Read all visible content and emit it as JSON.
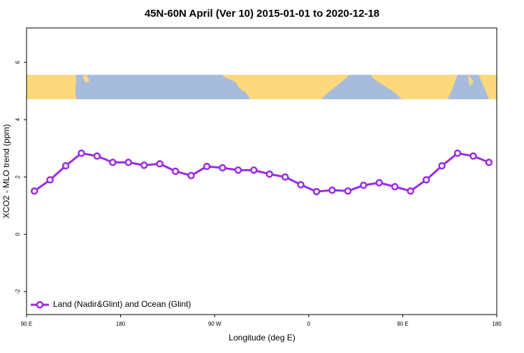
{
  "chart_data": {
    "type": "line",
    "title": "45N-60N April (Ver 10)   2015-01-01 to 2020-12-18",
    "x_label": "Longitude (deg E)",
    "y_label": "XCO2 - MLO trend (ppm)",
    "x": [
      97.5,
      112.5,
      127.5,
      142.5,
      157.5,
      172.5,
      187.5,
      202.5,
      217.5,
      232.5,
      247.5,
      262.5,
      277.5,
      292.5,
      307.5,
      322.5,
      337.5,
      352.5,
      367.5,
      382.5,
      397.5,
      412.5,
      427.5,
      442.5,
      457.5,
      472.5,
      487.5,
      502.5,
      517.5,
      532.5
    ],
    "series": [
      {
        "name": "Land (Nadir&Glint) and Ocean (Glint)",
        "color": "#9a2be2",
        "values": [
          1.51,
          1.9,
          2.39,
          2.83,
          2.73,
          2.51,
          2.51,
          2.41,
          2.46,
          2.2,
          2.05,
          2.37,
          2.32,
          2.24,
          2.24,
          2.1,
          2.0,
          1.73,
          1.49,
          1.54,
          1.51,
          1.71,
          1.8,
          1.66,
          1.51,
          1.9,
          2.39,
          2.83,
          2.73,
          2.51
        ]
      }
    ],
    "xlim": [
      90,
      540
    ],
    "xticks": [
      {
        "value": 90,
        "label": "90 E"
      },
      180,
      {
        "value": 270,
        "label": "90 W"
      },
      {
        "value": 360,
        "label": "0"
      },
      {
        "value": 450,
        "label": "90 E"
      },
      {
        "value": 540,
        "label": "180"
      }
    ],
    "ylim": [
      -2.8,
      7.2
    ],
    "yticks": [
      -2,
      0,
      2,
      4,
      6
    ],
    "legend": "bottom-left"
  }
}
